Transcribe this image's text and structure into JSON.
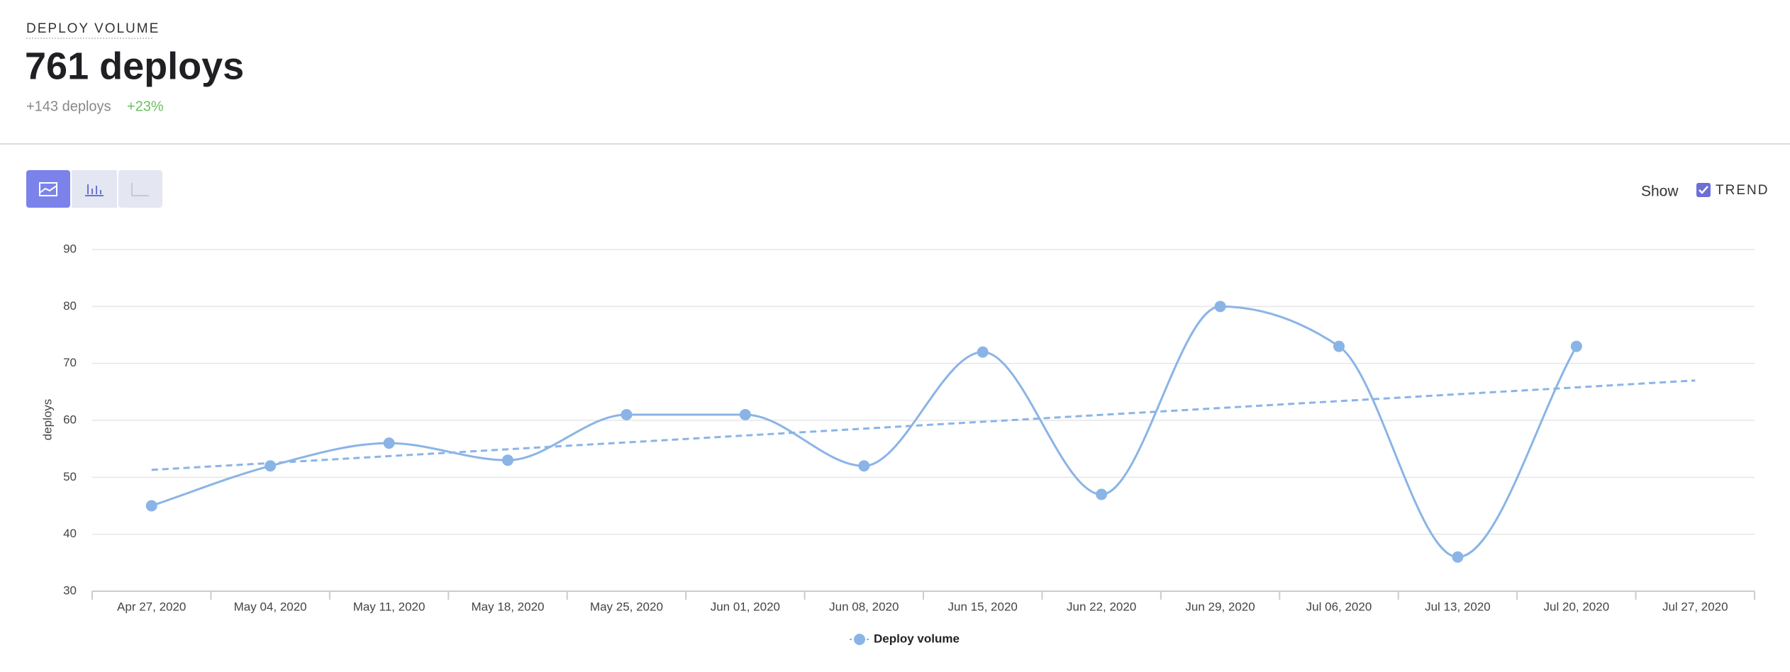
{
  "header": {
    "title": "DEPLOY VOLUME",
    "value": "761 deploys",
    "change": "+143 deploys",
    "change_pct": "+23%"
  },
  "controls": {
    "show_label": "Show",
    "trend_label": "TREND",
    "trend_checked": true
  },
  "chart_data": {
    "type": "line",
    "ylabel": "deploys",
    "categories": [
      "Apr 27, 2020",
      "May 04, 2020",
      "May 11, 2020",
      "May 18, 2020",
      "May 25, 2020",
      "Jun 01, 2020",
      "Jun 08, 2020",
      "Jun 15, 2020",
      "Jun 22, 2020",
      "Jun 29, 2020",
      "Jul 06, 2020",
      "Jul 13, 2020",
      "Jul 20, 2020",
      "Jul 27, 2020"
    ],
    "series": [
      {
        "name": "Deploy volume",
        "color": "#8ab4e6",
        "values": [
          45,
          52,
          56,
          53,
          61,
          61,
          52,
          72,
          47,
          80,
          73,
          36,
          73,
          null
        ]
      }
    ],
    "trend_start": 51.3,
    "trend_end": 67,
    "ylim": [
      30,
      90
    ],
    "yticks": [
      30,
      40,
      50,
      60,
      70,
      80,
      90
    ],
    "grid": true
  }
}
